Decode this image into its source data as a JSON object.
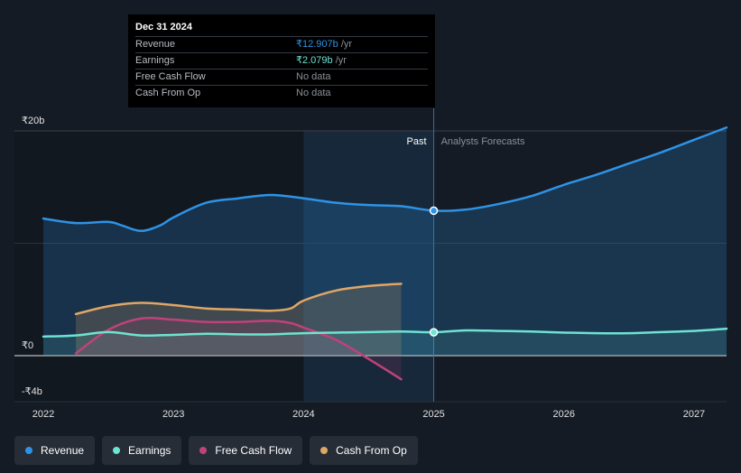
{
  "chart_data": {
    "type": "line",
    "currency": "₹",
    "x_range": [
      2022.0,
      2027.25
    ],
    "y_range": [
      -4,
      20
    ],
    "y_ticks": [
      {
        "value": 20,
        "label": "₹20b"
      },
      {
        "value": 0,
        "label": "₹0"
      },
      {
        "value": -4,
        "label": "-₹4b"
      }
    ],
    "x_ticks": [
      {
        "value": 2022,
        "label": "2022"
      },
      {
        "value": 2023,
        "label": "2023"
      },
      {
        "value": 2024,
        "label": "2024"
      },
      {
        "value": 2025,
        "label": "2025"
      },
      {
        "value": 2026,
        "label": "2026"
      },
      {
        "value": 2027,
        "label": "2027"
      }
    ],
    "divider_x": 2025.0,
    "highlight_start_x": 2024.0,
    "past_label": "Past",
    "forecast_label": "Analysts Forecasts",
    "series": [
      {
        "name": "Revenue",
        "color": "#2e93e5",
        "points": [
          [
            2022.0,
            12.2
          ],
          [
            2022.25,
            11.8
          ],
          [
            2022.5,
            11.9
          ],
          [
            2022.6,
            11.6
          ],
          [
            2022.75,
            11.1
          ],
          [
            2022.9,
            11.6
          ],
          [
            2023.0,
            12.3
          ],
          [
            2023.25,
            13.6
          ],
          [
            2023.5,
            14.0
          ],
          [
            2023.75,
            14.3
          ],
          [
            2024.0,
            14.0
          ],
          [
            2024.25,
            13.6
          ],
          [
            2024.5,
            13.4
          ],
          [
            2024.75,
            13.3
          ],
          [
            2025.0,
            12.9
          ],
          [
            2025.25,
            13.0
          ],
          [
            2025.5,
            13.5
          ],
          [
            2025.75,
            14.2
          ],
          [
            2026.0,
            15.2
          ],
          [
            2026.25,
            16.1
          ],
          [
            2026.5,
            17.1
          ],
          [
            2026.75,
            18.1
          ],
          [
            2027.0,
            19.2
          ],
          [
            2027.25,
            20.3
          ]
        ],
        "marker": [
          2025.0,
          12.9
        ]
      },
      {
        "name": "Earnings",
        "color": "#6ee3d2",
        "points": [
          [
            2022.0,
            1.7
          ],
          [
            2022.25,
            1.8
          ],
          [
            2022.5,
            2.1
          ],
          [
            2022.75,
            1.8
          ],
          [
            2023.0,
            1.85
          ],
          [
            2023.25,
            1.95
          ],
          [
            2023.5,
            1.9
          ],
          [
            2023.75,
            1.9
          ],
          [
            2024.0,
            2.0
          ],
          [
            2024.25,
            2.05
          ],
          [
            2024.5,
            2.1
          ],
          [
            2024.75,
            2.15
          ],
          [
            2025.0,
            2.08
          ],
          [
            2025.25,
            2.25
          ],
          [
            2025.5,
            2.2
          ],
          [
            2025.75,
            2.15
          ],
          [
            2026.0,
            2.05
          ],
          [
            2026.25,
            2.0
          ],
          [
            2026.5,
            2.0
          ],
          [
            2026.75,
            2.1
          ],
          [
            2027.0,
            2.2
          ],
          [
            2027.25,
            2.4
          ]
        ],
        "marker": [
          2025.0,
          2.08
        ]
      },
      {
        "name": "Free Cash Flow",
        "color": "#c0427a",
        "points": [
          [
            2022.25,
            0.2
          ],
          [
            2022.5,
            2.3
          ],
          [
            2022.75,
            3.3
          ],
          [
            2023.0,
            3.2
          ],
          [
            2023.25,
            3.0
          ],
          [
            2023.5,
            3.0
          ],
          [
            2023.75,
            3.1
          ],
          [
            2023.9,
            2.9
          ],
          [
            2024.0,
            2.5
          ],
          [
            2024.25,
            1.4
          ],
          [
            2024.5,
            -0.3
          ],
          [
            2024.75,
            -2.1
          ]
        ]
      },
      {
        "name": "Cash From Op",
        "color": "#e0a665",
        "points": [
          [
            2022.25,
            3.7
          ],
          [
            2022.5,
            4.4
          ],
          [
            2022.75,
            4.7
          ],
          [
            2023.0,
            4.5
          ],
          [
            2023.25,
            4.2
          ],
          [
            2023.5,
            4.1
          ],
          [
            2023.75,
            4.0
          ],
          [
            2023.9,
            4.2
          ],
          [
            2024.0,
            4.9
          ],
          [
            2024.25,
            5.8
          ],
          [
            2024.5,
            6.2
          ],
          [
            2024.75,
            6.4
          ]
        ]
      }
    ]
  },
  "tooltip": {
    "date": "Dec 31 2024",
    "rows": [
      {
        "label": "Revenue",
        "value": "₹12.907b",
        "unit": " /yr"
      },
      {
        "label": "Earnings",
        "value": "₹2.079b",
        "unit": " /yr"
      },
      {
        "label": "Free Cash Flow",
        "value": "No data"
      },
      {
        "label": "Cash From Op",
        "value": "No data"
      }
    ]
  },
  "legend": [
    {
      "label": "Revenue",
      "color": "#2e93e5"
    },
    {
      "label": "Earnings",
      "color": "#6ee3d2"
    },
    {
      "label": "Free Cash Flow",
      "color": "#c0427a"
    },
    {
      "label": "Cash From Op",
      "color": "#e0a665"
    }
  ]
}
